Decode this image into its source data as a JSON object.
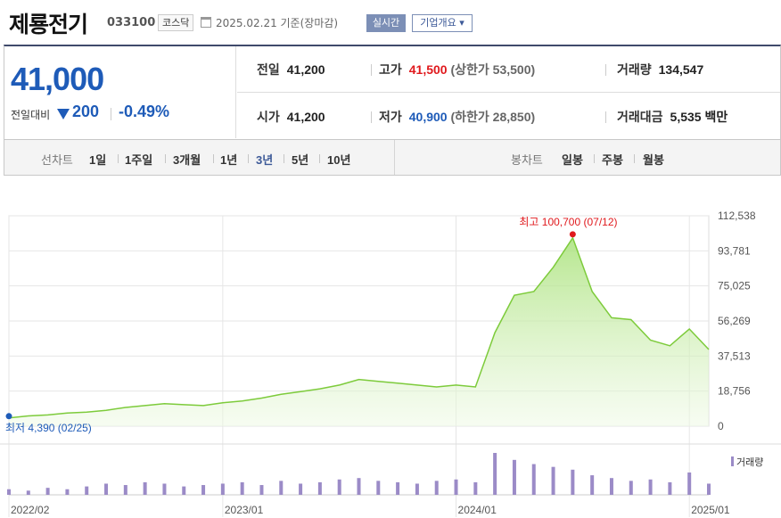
{
  "header": {
    "company_name": "제룡전기",
    "stock_code": "033100",
    "market": "코스닥",
    "date_text": "2025.02.21  기준(장마감)",
    "realtime_label": "실시간",
    "company_overview_label": "기업개요 ▾"
  },
  "price": {
    "current": "41,000",
    "change_label": "전일대비",
    "change_value": "200",
    "change_percent": "-0.49%",
    "direction": "down"
  },
  "stats": {
    "prev_close_label": "전일",
    "prev_close": "41,200",
    "high_label": "고가",
    "high": "41,500",
    "upper_limit": "(상한가 53,500)",
    "volume_label": "거래량",
    "volume": "134,547",
    "open_label": "시가",
    "open": "41,200",
    "low_label": "저가",
    "low": "40,900",
    "lower_limit": "(하한가 28,850)",
    "amount_label": "거래대금",
    "amount": "5,535",
    "amount_unit": "백만"
  },
  "periods": {
    "line_label": "선차트",
    "line_items": [
      "1일",
      "1주일",
      "3개월",
      "1년",
      "3년",
      "5년",
      "10년"
    ],
    "active": "3년",
    "candle_label": "봉차트",
    "candle_items": [
      "일봉",
      "주봉",
      "월봉"
    ]
  },
  "colors": {
    "accent_blue": "#1e5bb8",
    "accent_red": "#e0191d",
    "line_green": "#7dcb3b",
    "volume_purple": "#9b8bc7"
  },
  "chart_data": {
    "type": "area",
    "ylim": [
      0,
      112538
    ],
    "y_ticks": [
      "112,538",
      "93,781",
      "75,025",
      "56,269",
      "37,513",
      "18,756",
      "0"
    ],
    "x_ticks": [
      "2022/02",
      "2023/01",
      "2024/01",
      "2025/01"
    ],
    "max_annotation": "최고 100,700 (07/12)",
    "min_annotation": "최저 4,390 (02/25)",
    "volume_legend": "거래량",
    "x": [
      "2022-02",
      "2022-03",
      "2022-04",
      "2022-05",
      "2022-06",
      "2022-07",
      "2022-08",
      "2022-09",
      "2022-10",
      "2022-11",
      "2022-12",
      "2023-01",
      "2023-02",
      "2023-03",
      "2023-04",
      "2023-05",
      "2023-06",
      "2023-07",
      "2023-08",
      "2023-09",
      "2023-10",
      "2023-11",
      "2023-12",
      "2024-01",
      "2024-02",
      "2024-03",
      "2024-04",
      "2024-05",
      "2024-06",
      "2024-07",
      "2024-08",
      "2024-09",
      "2024-10",
      "2024-11",
      "2024-12",
      "2025-01",
      "2025-02"
    ],
    "series": [
      {
        "values": [
          4390,
          5500,
          6000,
          7000,
          7500,
          8500,
          10000,
          11000,
          12000,
          11500,
          11000,
          12500,
          13500,
          15000,
          17000,
          18500,
          20000,
          22000,
          25000,
          24000,
          23000,
          22000,
          21000,
          22000,
          21000,
          50000,
          70000,
          72000,
          85000,
          100700,
          72000,
          58000,
          57000,
          46000,
          43000,
          52000,
          41000
        ]
      },
      {
        "values": [
          4,
          3,
          5,
          4,
          6,
          8,
          7,
          9,
          8,
          6,
          7,
          8,
          9,
          7,
          10,
          8,
          9,
          11,
          12,
          10,
          9,
          8,
          10,
          11,
          9,
          30,
          25,
          22,
          20,
          18,
          14,
          12,
          10,
          11,
          9,
          16,
          8
        ]
      }
    ]
  }
}
